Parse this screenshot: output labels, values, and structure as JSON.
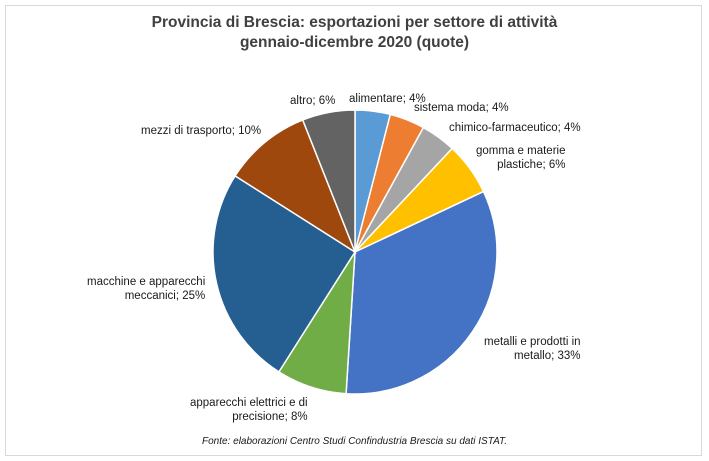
{
  "chart_data": {
    "type": "pie",
    "title": "Provincia di Brescia: esportazioni per settore di attività",
    "subtitle": "gennaio-dicembre 2020 (quote)",
    "slices": [
      {
        "key": "alimentare",
        "label_lines": [
          "alimentare; 4%"
        ],
        "value": 4,
        "color": "#5B9BD5"
      },
      {
        "key": "sistema-moda",
        "label_lines": [
          "sistema moda; 4%"
        ],
        "value": 4,
        "color": "#ED7D31"
      },
      {
        "key": "chimico-farmaceutico",
        "label_lines": [
          "chimico-farmaceutico; 4%"
        ],
        "value": 4,
        "color": "#A5A5A5"
      },
      {
        "key": "gomma-materie-plastiche",
        "label_lines": [
          "gomma e materie",
          "plastiche; 6%"
        ],
        "value": 6,
        "color": "#FFC000"
      },
      {
        "key": "metalli-prodotti-metallo",
        "label_lines": [
          "metalli e prodotti in",
          "metallo; 33%"
        ],
        "value": 33,
        "color": "#4472C4"
      },
      {
        "key": "apparecchi-elettrici-precisione",
        "label_lines": [
          "apparecchi elettrici e di",
          "precisione; 8%"
        ],
        "value": 8,
        "color": "#70AD47"
      },
      {
        "key": "macchine-apparecchi-meccanici",
        "label_lines": [
          "macchine e apparecchi",
          "meccanici; 25%"
        ],
        "value": 25,
        "color": "#255E91"
      },
      {
        "key": "mezzi-di-trasporto",
        "label_lines": [
          "mezzi di trasporto; 10%"
        ],
        "value": 10,
        "color": "#9E480E"
      },
      {
        "key": "altro",
        "label_lines": [
          "altro; 6%"
        ],
        "value": 6,
        "color": "#636363"
      }
    ]
  },
  "source": "Fonte: elaborazioni Centro Studi Confindustria Brescia su dati ISTAT."
}
